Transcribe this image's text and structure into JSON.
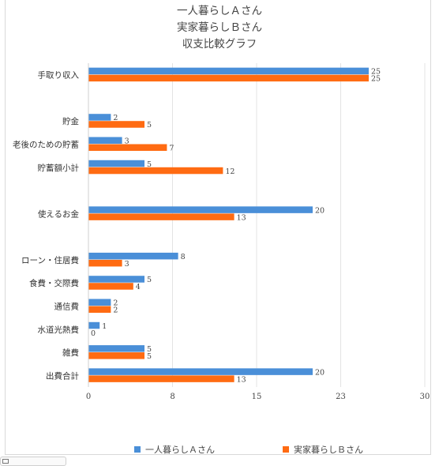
{
  "chart_data": {
    "type": "bar",
    "orientation": "horizontal",
    "title_lines": [
      "一人暮らしＡさん",
      "実家暮らしＢさん",
      "収支比較グラフ"
    ],
    "categories": [
      "手取り収入",
      "",
      "貯金",
      "老後のための貯蓄",
      "貯蓄額小計",
      "",
      "使えるお金",
      "",
      "ローン・住居費",
      "食費・交際費",
      "通信費",
      "水道光熱費",
      "雑費",
      "出費合計"
    ],
    "series": [
      {
        "name": "一人暮らしＡさん",
        "color": "#4a8fd8",
        "values": [
          25,
          null,
          2,
          3,
          5,
          null,
          20,
          null,
          8,
          5,
          2,
          1,
          5,
          20
        ]
      },
      {
        "name": "実家暮らしＢさん",
        "color": "#ff6b12",
        "values": [
          25,
          null,
          5,
          7,
          12,
          null,
          13,
          null,
          3,
          4,
          2,
          0,
          5,
          13
        ]
      }
    ],
    "xlim": [
      0,
      30
    ],
    "x_ticks": [
      "0",
      "8",
      "15",
      "23",
      "30"
    ],
    "x_tick_values": [
      0,
      7.5,
      15,
      22.5,
      30
    ],
    "grid": true,
    "legend_position": "bottom"
  }
}
